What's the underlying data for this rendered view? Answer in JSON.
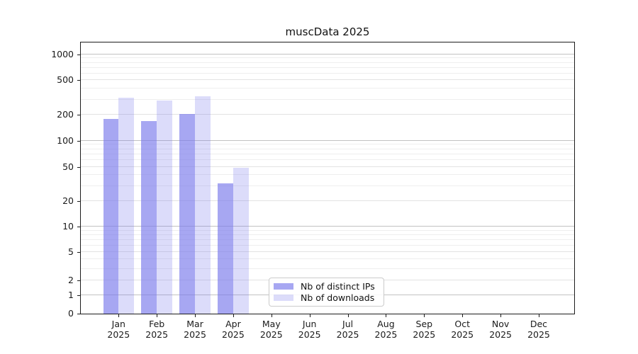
{
  "figure_title": "muscData 2025",
  "colors": {
    "bar_distinct_ips": "rgba(120,120,235,0.65)",
    "bar_downloads": "rgba(120,120,235,0.26)",
    "grid_decade": "#c2c2c2",
    "grid_sub": "#e2e2e2",
    "grid_minor": "#eeeeee",
    "spine": "#1c1c1c",
    "legend_border": "#cbcbcb"
  },
  "chart_data": {
    "type": "bar",
    "title": "muscData 2025",
    "scale": "asinh (log-like axis, linear near zero)",
    "categories": [
      "Jan 2025",
      "Feb 2025",
      "Mar 2025",
      "Apr 2025",
      "May 2025",
      "Jun 2025",
      "Jul 2025",
      "Aug 2025",
      "Sep 2025",
      "Oct 2025",
      "Nov 2025",
      "Dec 2025"
    ],
    "series": [
      {
        "name": "Nb of distinct IPs",
        "color": "rgba(120,120,235,0.65)",
        "values": [
          180,
          168,
          205,
          32,
          0,
          0,
          0,
          0,
          0,
          0,
          0,
          0
        ]
      },
      {
        "name": "Nb of downloads",
        "color": "rgba(120,120,235,0.26)",
        "values": [
          317,
          291,
          328,
          49,
          0,
          0,
          0,
          0,
          0,
          0,
          0,
          0
        ]
      }
    ],
    "yticks": [
      0,
      1,
      2,
      5,
      10,
      20,
      50,
      100,
      200,
      500,
      1000
    ],
    "ylim": [
      0,
      1370
    ],
    "asinh_linear_width": 2,
    "xlabel": "",
    "ylabel": "",
    "grid": true,
    "legend_position": "lower center"
  }
}
